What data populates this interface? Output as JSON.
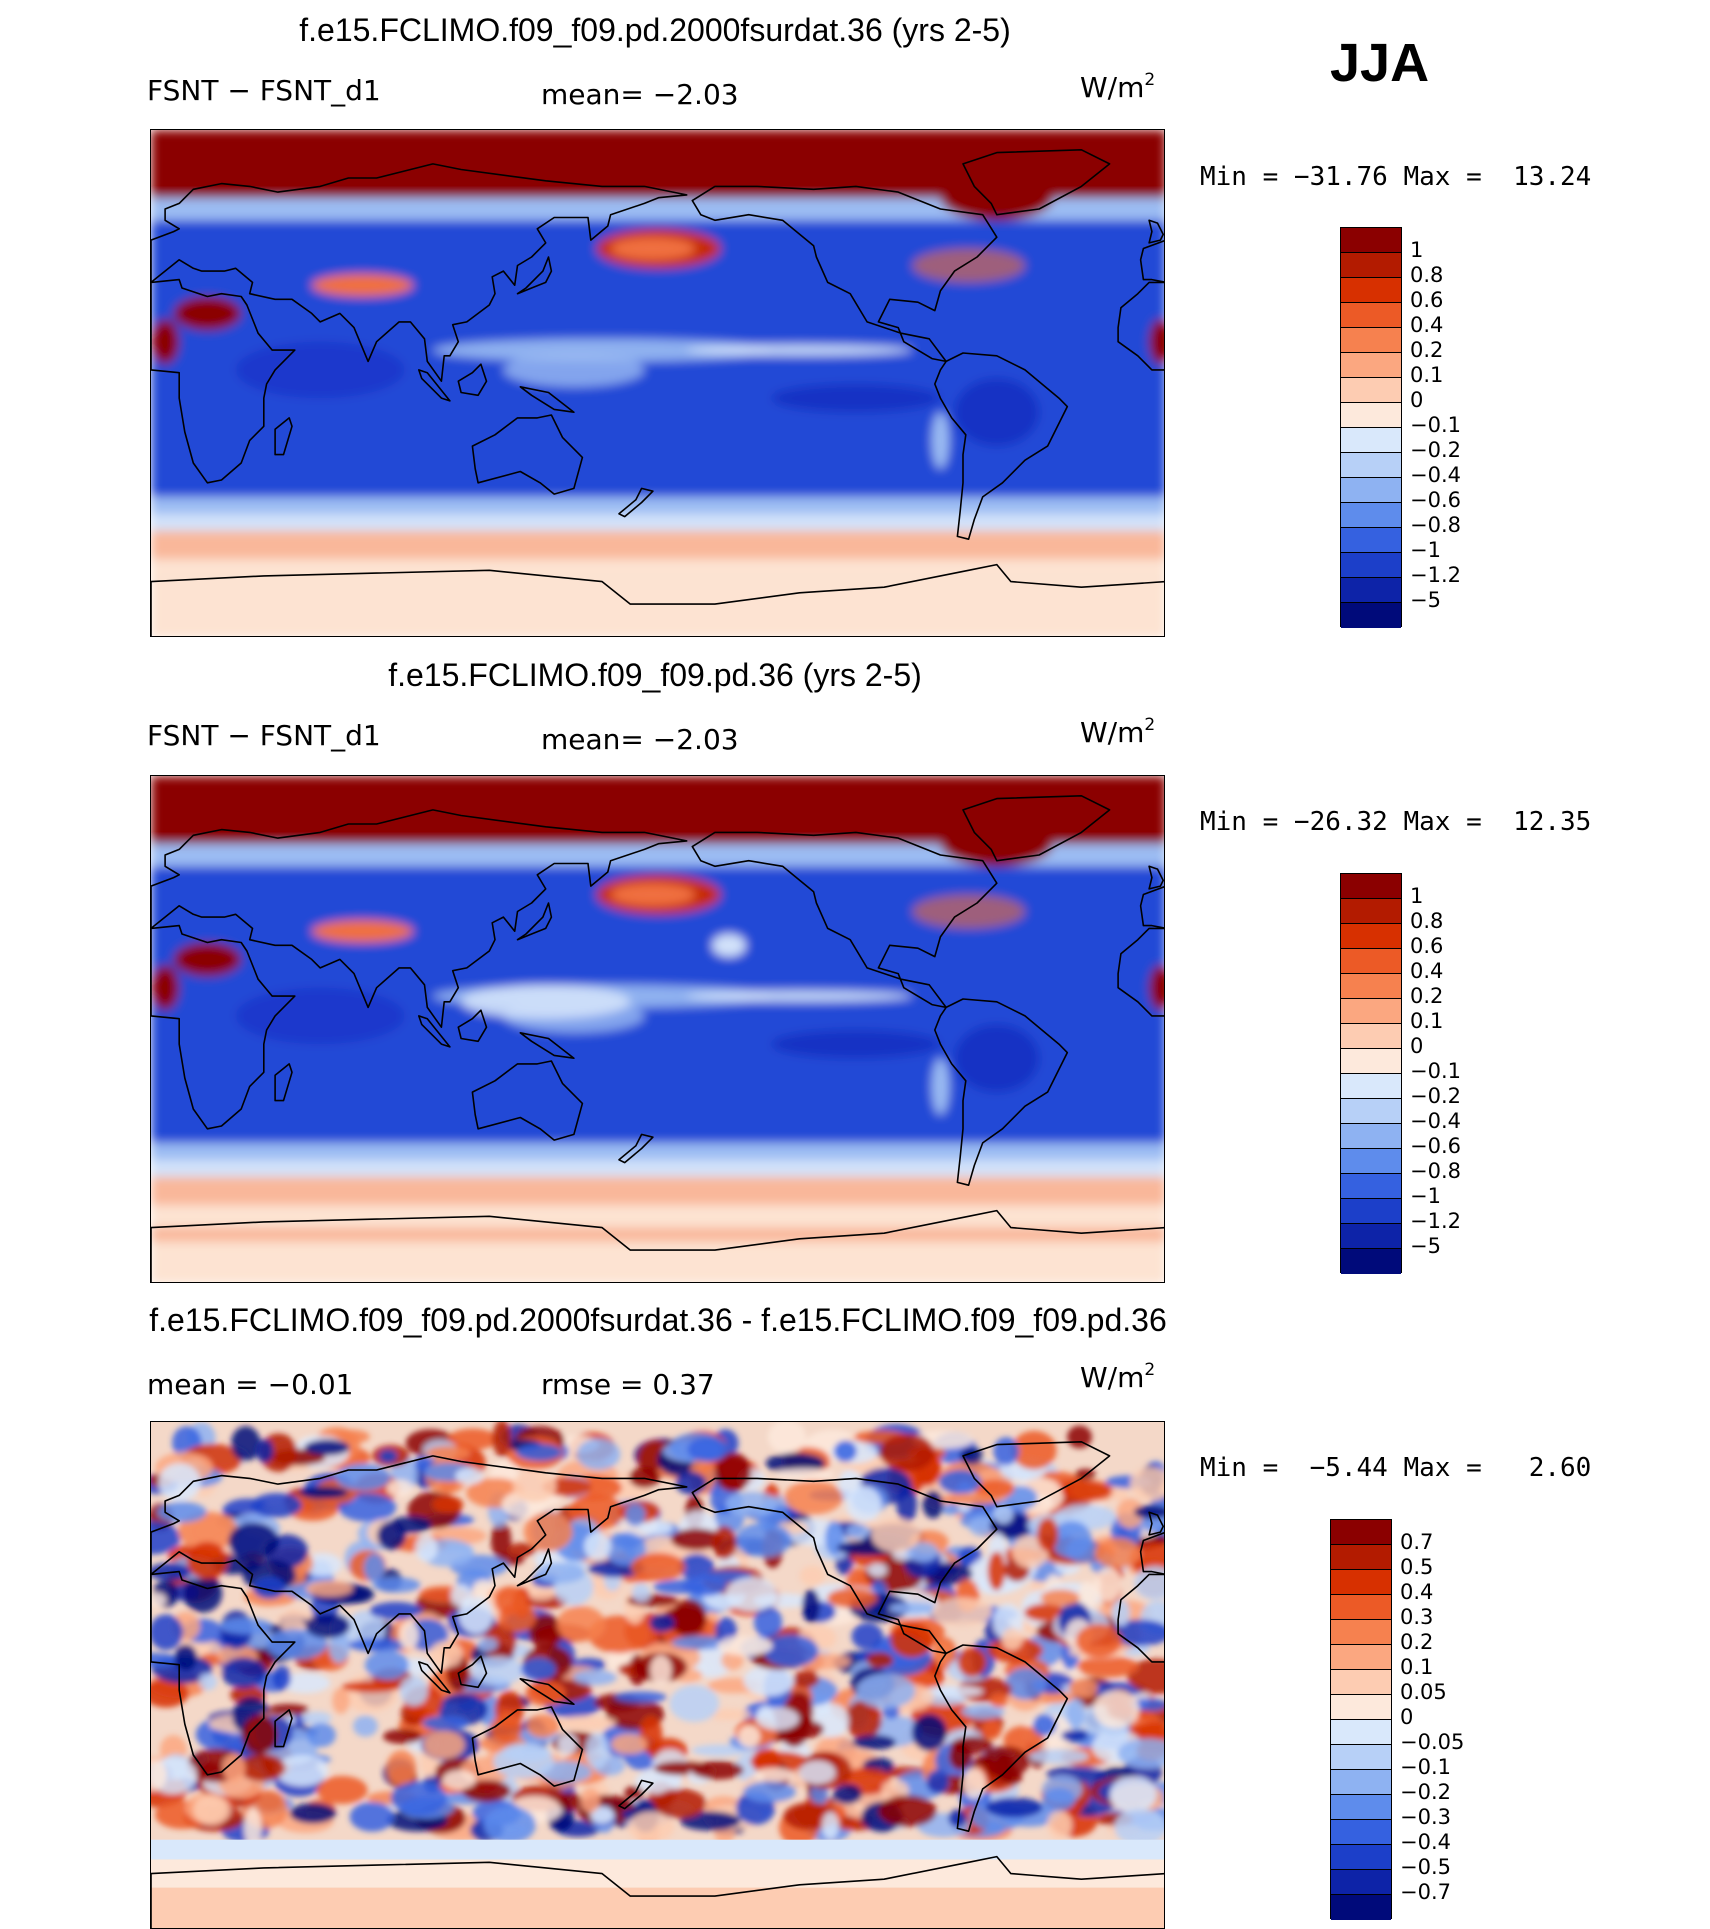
{
  "season": "JJA",
  "units_base": "W/m",
  "units_exp": "2",
  "panels": [
    {
      "title": "f.e15.FCLIMO.f09_f09.pd.2000fsurdat.36 (yrs 2-5)",
      "left_label": "FSNT − FSNT_d1",
      "center_label": "mean=   −2.03",
      "minmax": "Min = −31.76 Max =  13.24",
      "kind": "mean",
      "levels": [
        "1",
        "0.8",
        "0.6",
        "0.4",
        "0.2",
        "0.1",
        "0",
        "−0.1",
        "−0.2",
        "−0.4",
        "−0.6",
        "−0.8",
        "−1",
        "−1.2",
        "−5"
      ]
    },
    {
      "title": "f.e15.FCLIMO.f09_f09.pd.36 (yrs 2-5)",
      "left_label": "FSNT − FSNT_d1",
      "center_label": "mean=   −2.03",
      "minmax": "Min = −26.32 Max =  12.35",
      "kind": "mean",
      "levels": [
        "1",
        "0.8",
        "0.6",
        "0.4",
        "0.2",
        "0.1",
        "0",
        "−0.1",
        "−0.2",
        "−0.4",
        "−0.6",
        "−0.8",
        "−1",
        "−1.2",
        "−5"
      ]
    },
    {
      "title": "f.e15.FCLIMO.f09_f09.pd.2000fsurdat.36 - f.e15.FCLIMO.f09_f09.pd.36",
      "left_label": "mean =   −0.01",
      "center_label": "rmse =    0.37",
      "minmax": "Min =  −5.44 Max =   2.60",
      "kind": "diff",
      "levels": [
        "0.7",
        "0.5",
        "0.4",
        "0.3",
        "0.2",
        "0.1",
        "0.05",
        "0",
        "−0.05",
        "−0.1",
        "−0.2",
        "−0.3",
        "−0.4",
        "−0.5",
        "−0.7"
      ]
    }
  ],
  "colorbar_colors": [
    "#8b0000",
    "#b31b00",
    "#d73000",
    "#ec5a26",
    "#f6814f",
    "#fba780",
    "#fdccb2",
    "#fde9dc",
    "#d9e8fb",
    "#b7d0f7",
    "#8eb2f2",
    "#5e8cec",
    "#3561e0",
    "#1c3fc9",
    "#0d23a8",
    "#000a7a"
  ],
  "map_colors": {
    "ocean_deep": "#1530c4",
    "ocean_mid": "#2448d6",
    "pale_blue": "#9bbcf3",
    "very_pale_blue": "#d2e2fa",
    "dark_red": "#8b0000",
    "red": "#c62a00",
    "orange": "#f07040",
    "peach": "#f9b79a",
    "pale_peach": "#fde3d2",
    "coast": "#000000"
  }
}
